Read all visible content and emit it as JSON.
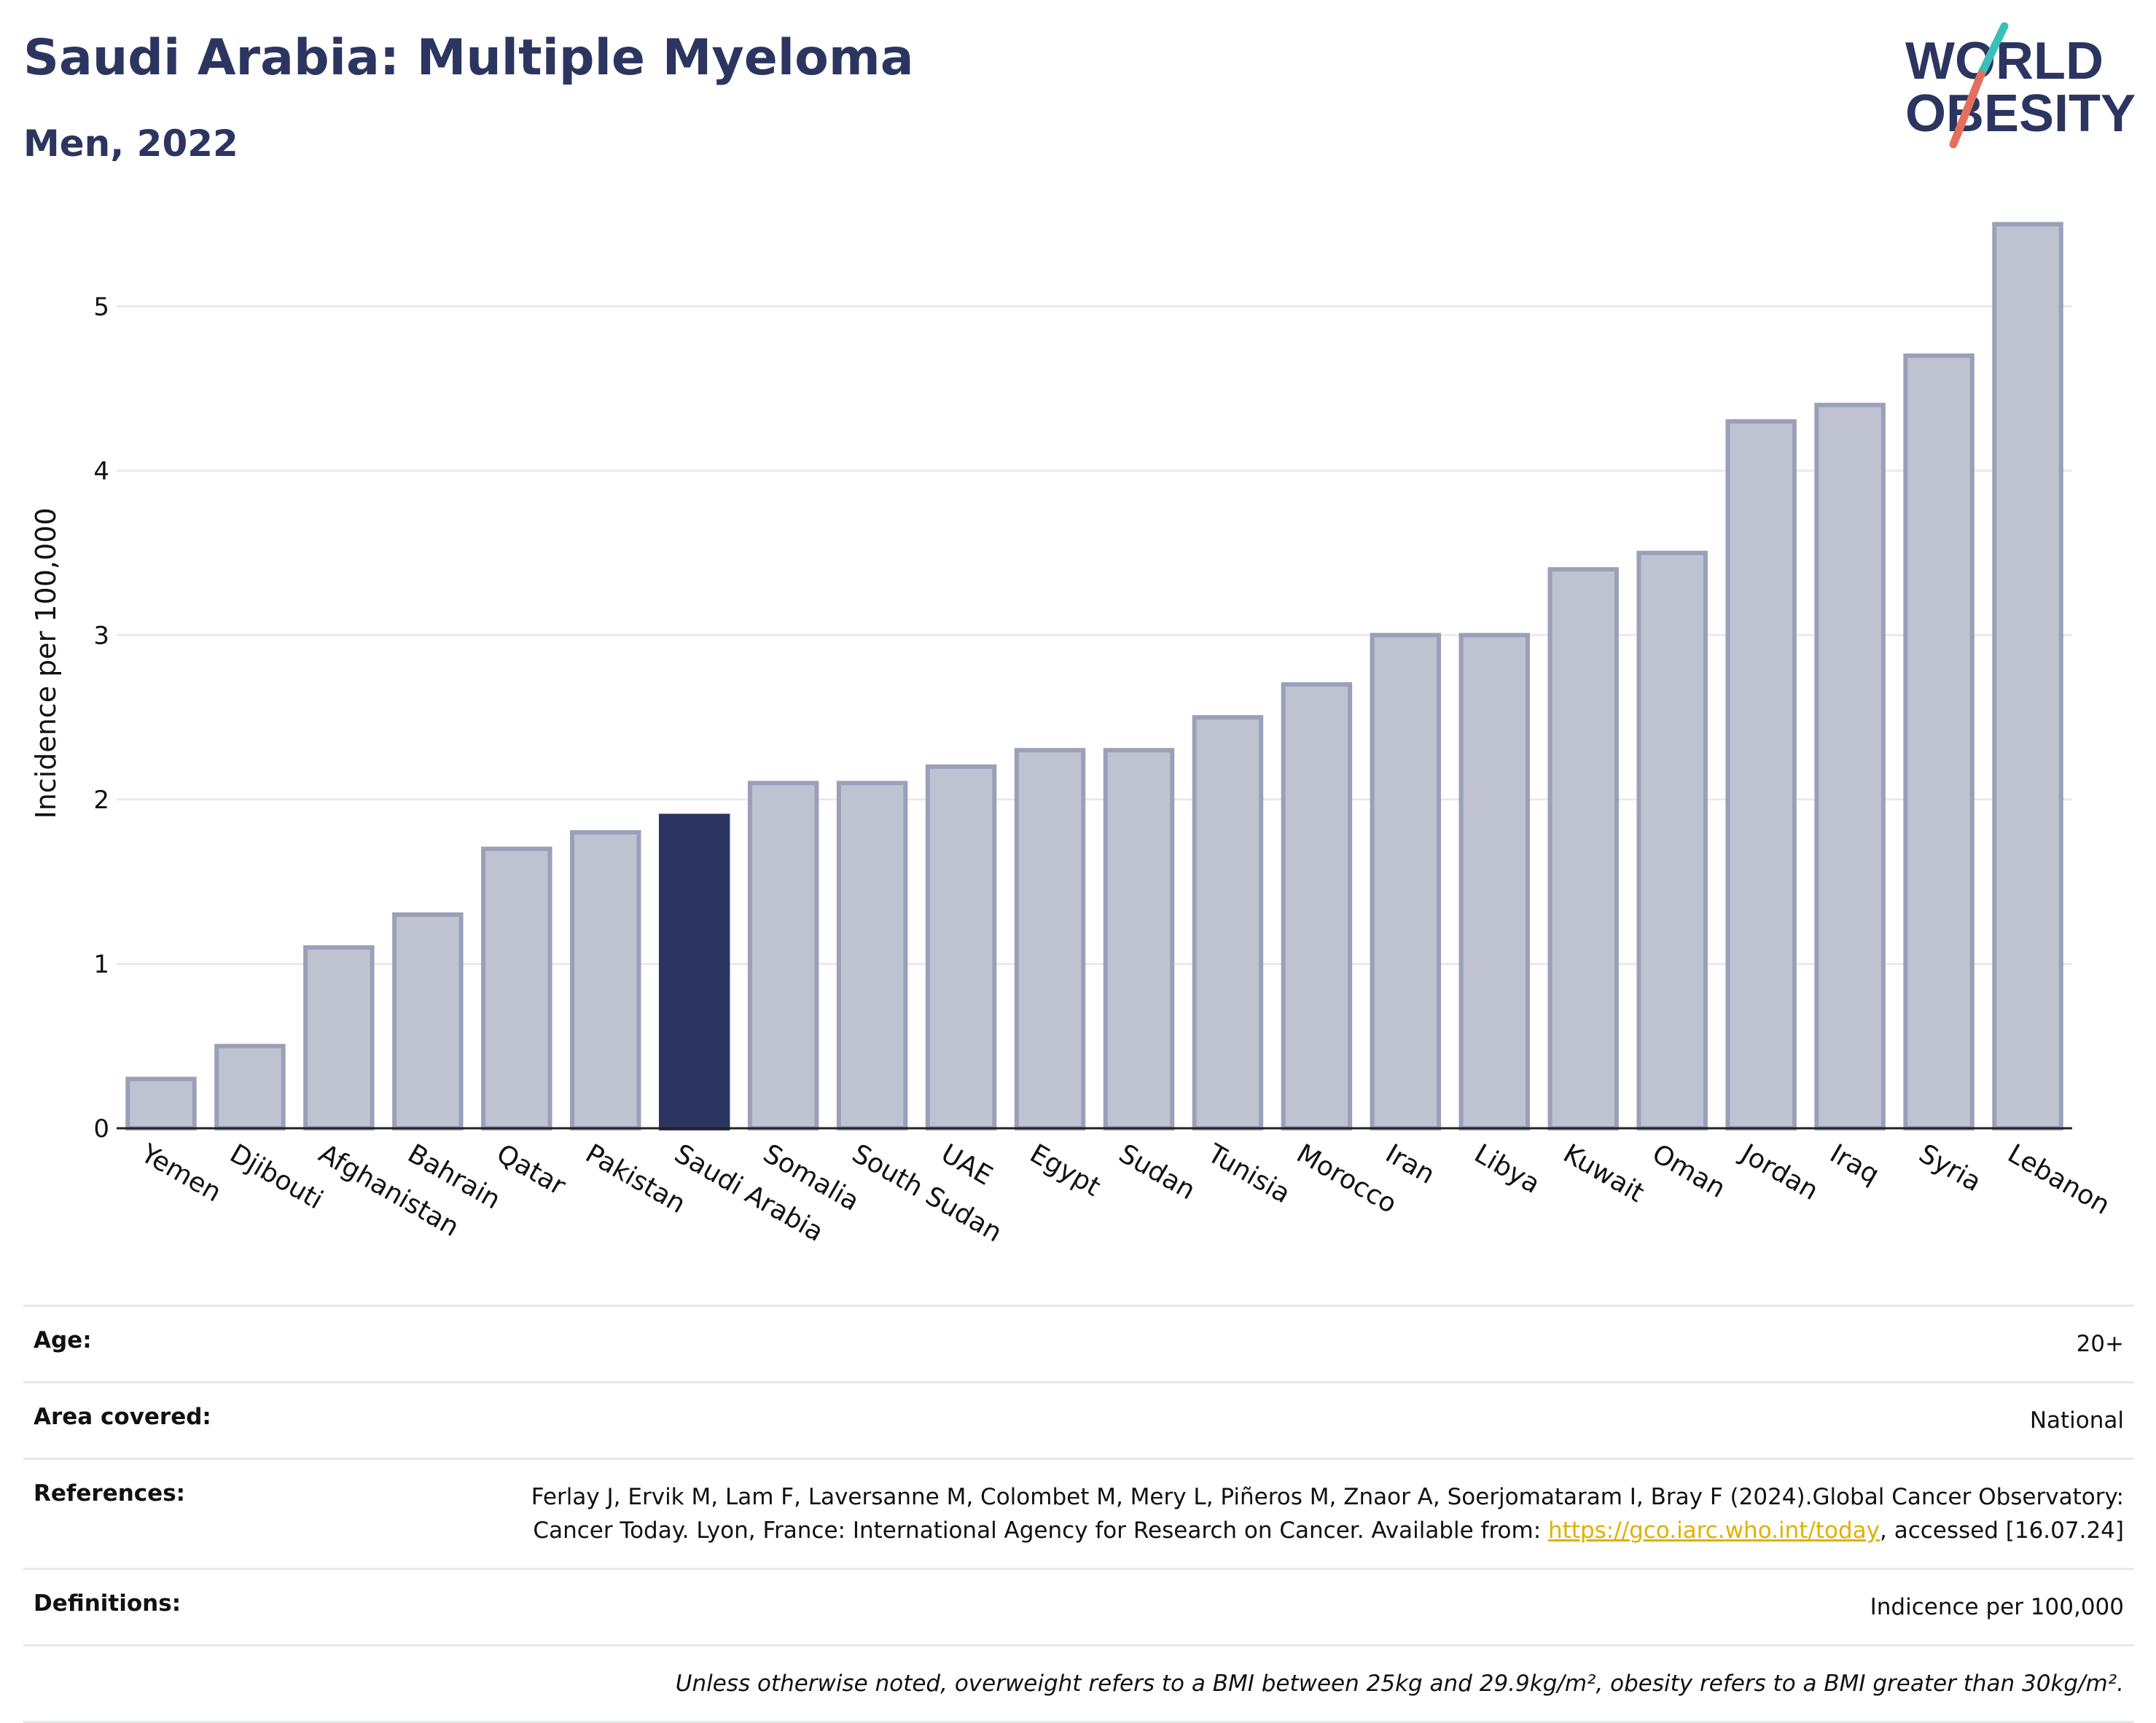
{
  "header": {
    "title": "Saudi Arabia: Multiple Myeloma",
    "subtitle": "Men, 2022"
  },
  "logo": {
    "line1": "WORLD",
    "line2": "OBESITY",
    "icon": "world-obesity-logo"
  },
  "chart_data": {
    "type": "bar",
    "title": "Saudi Arabia: Multiple Myeloma",
    "subtitle": "Men, 2022",
    "ylabel": "Incidence per 100,000",
    "xlabel": "",
    "ylim": [
      0,
      5.6
    ],
    "yticks": [
      0,
      1,
      2,
      3,
      4,
      5
    ],
    "grid": true,
    "highlight": "Saudi Arabia",
    "colors": {
      "bar": "#bfc3d1",
      "bar_border": "#9aa0b8",
      "highlight": "#2b3560"
    },
    "categories": [
      "Yemen",
      "Djibouti",
      "Afghanistan",
      "Bahrain",
      "Qatar",
      "Pakistan",
      "Saudi Arabia",
      "Somalia",
      "South Sudan",
      "UAE",
      "Egypt",
      "Sudan",
      "Tunisia",
      "Morocco",
      "Iran",
      "Libya",
      "Kuwait",
      "Oman",
      "Jordan",
      "Iraq",
      "Syria",
      "Lebanon"
    ],
    "values": [
      0.3,
      0.5,
      1.1,
      1.3,
      1.7,
      1.8,
      1.9,
      2.1,
      2.1,
      2.2,
      2.3,
      2.3,
      2.5,
      2.7,
      3.0,
      3.0,
      3.4,
      3.5,
      4.3,
      4.4,
      4.7,
      5.5
    ]
  },
  "info": {
    "age_label": "Age:",
    "age_value": "20+",
    "area_label": "Area covered:",
    "area_value": "National",
    "references_label": "References:",
    "references_text1": "Ferlay J, Ervik M, Lam F, Laversanne M, Colombet M, Mery L, Piñeros M, Znaor A, Soerjomataram I, Bray F (2024).Global Cancer Observatory: Cancer Today. Lyon, France: International Agency for Research on Cancer. Available from: ",
    "references_link": "https://gco.iarc.who.int/today",
    "references_text2": ", accessed [16.07.24]",
    "definitions_label": "Definitions:",
    "definitions_value": "Indicence per 100,000",
    "note": "Unless otherwise noted, overweight refers to a BMI between 25kg and 29.9kg/m², obesity refers to a BMI greater than 30kg/m²."
  }
}
